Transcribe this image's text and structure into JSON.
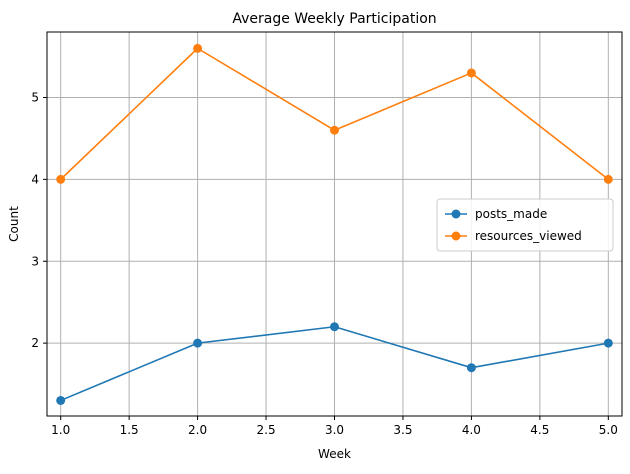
{
  "chart_data": {
    "type": "line",
    "title": "Average Weekly Participation",
    "xlabel": "Week",
    "ylabel": "Count",
    "xlim": [
      0.9,
      5.1
    ],
    "ylim": [
      1.11,
      5.8
    ],
    "x_ticks": [
      1.0,
      1.5,
      2.0,
      2.5,
      3.0,
      3.5,
      4.0,
      4.5,
      5.0
    ],
    "x_tick_labels": [
      "1.0",
      "1.5",
      "2.0",
      "2.5",
      "3.0",
      "3.5",
      "4.0",
      "4.5",
      "5.0"
    ],
    "y_ticks": [
      2,
      3,
      4,
      5
    ],
    "y_tick_labels": [
      "2",
      "3",
      "4",
      "5"
    ],
    "grid": true,
    "legend_position": "center-right",
    "x": [
      1,
      2,
      3,
      4,
      5
    ],
    "series": [
      {
        "name": "posts_made",
        "color": "#1f77b4",
        "values": [
          1.3,
          2.0,
          2.2,
          1.7,
          2.0
        ]
      },
      {
        "name": "resources_viewed",
        "color": "#ff7f0e",
        "values": [
          4.0,
          5.6,
          4.6,
          5.3,
          4.0
        ]
      }
    ]
  }
}
